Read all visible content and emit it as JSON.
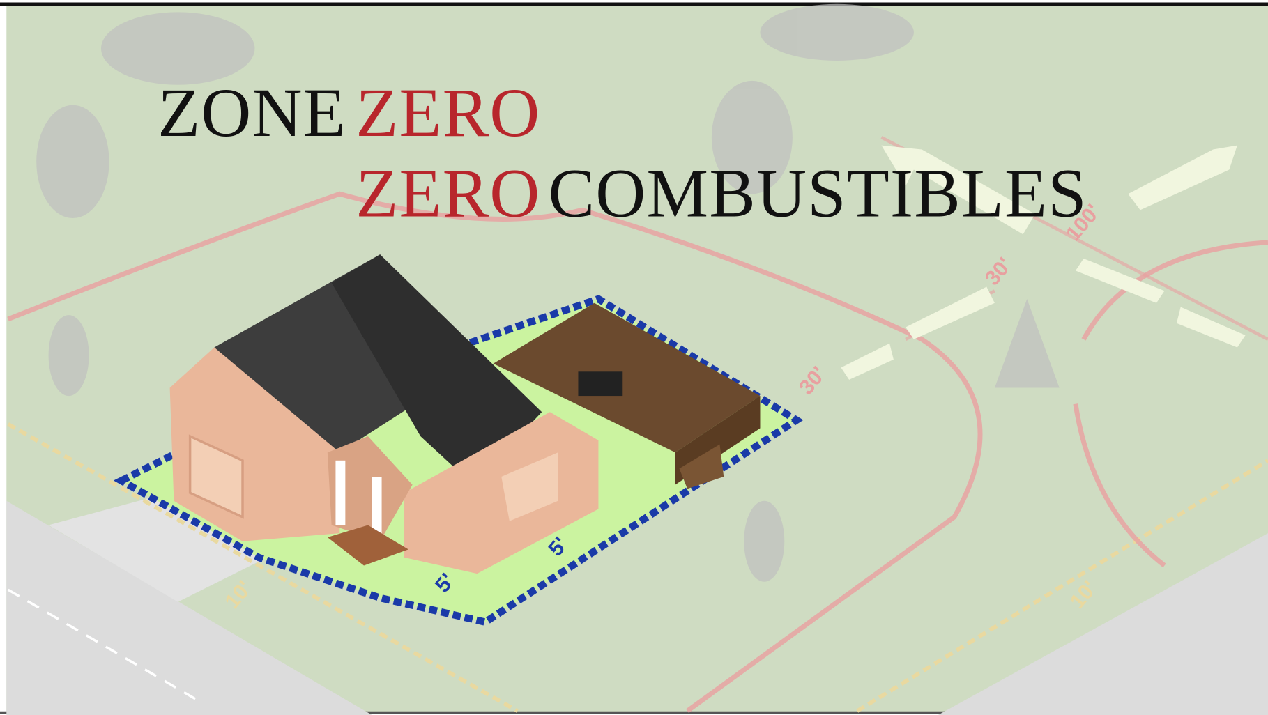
{
  "title": {
    "line1": [
      "ZONE",
      "ZERO"
    ],
    "line2": [
      "ZERO",
      "COMBUSTIBLES"
    ]
  },
  "labels": {
    "inner_left": "5'",
    "inner_right": "5'",
    "outer_left": "10'",
    "outer_right": "10'",
    "mid_left": "30'",
    "mid_right": "30'",
    "far": "100'"
  }
}
